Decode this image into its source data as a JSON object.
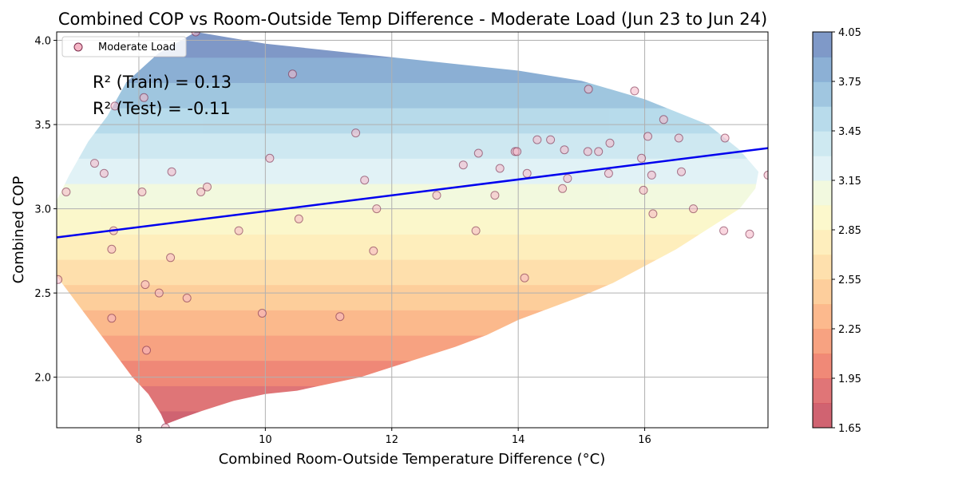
{
  "chart_data": {
    "type": "scatter",
    "title": "Combined COP vs Room-Outside Temp Difference - Moderate Load (Jun 23 to Jun 24)",
    "xlabel": "Combined Room-Outside Temperature Difference (°C)",
    "ylabel": "Combined COP",
    "xlim": [
      6.7,
      17.95
    ],
    "ylim": [
      1.7,
      4.05
    ],
    "x_ticks": [
      8,
      10,
      12,
      14,
      16
    ],
    "x_tick_labels": [
      "8",
      "10",
      "12",
      "14",
      "16"
    ],
    "y_ticks": [
      2.0,
      2.5,
      3.0,
      3.5,
      4.0
    ],
    "y_tick_labels": [
      "2.0",
      "2.5",
      "3.0",
      "3.5",
      "4.0"
    ],
    "grid": true,
    "legend": {
      "position": "top-left",
      "entries": [
        "Moderate Load"
      ]
    },
    "annotations": [
      "R² (Train) = 0.13",
      "R² (Test) = -0.11"
    ],
    "regression_line": {
      "x": [
        6.7,
        17.95
      ],
      "y": [
        2.83,
        3.36
      ],
      "color": "#0000ee"
    },
    "colorbar": {
      "levels": [
        1.65,
        1.8,
        1.95,
        2.1,
        2.25,
        2.4,
        2.55,
        2.7,
        2.85,
        3.0,
        3.15,
        3.3,
        3.45,
        3.6,
        3.75,
        3.9,
        4.05
      ],
      "tick_labels": [
        "1.65",
        "1.95",
        "2.25",
        "2.55",
        "2.85",
        "3.15",
        "3.45",
        "3.75",
        "4.05"
      ],
      "colors": [
        "#c43c4e",
        "#d85355",
        "#ec6b55",
        "#f58b62",
        "#fba870",
        "#fdc283",
        "#fed898",
        "#feeaac",
        "#fbf6bf",
        "#eff8d7",
        "#daeff4",
        "#c2e3ee",
        "#a6d2e6",
        "#88b8d8",
        "#6f9cca",
        "#5f7fba"
      ]
    },
    "points": [
      {
        "x": 6.72,
        "y": 2.58
      },
      {
        "x": 6.85,
        "y": 3.1
      },
      {
        "x": 7.3,
        "y": 3.27
      },
      {
        "x": 7.45,
        "y": 3.21
      },
      {
        "x": 7.57,
        "y": 2.76
      },
      {
        "x": 7.57,
        "y": 2.35
      },
      {
        "x": 7.62,
        "y": 3.61
      },
      {
        "x": 7.6,
        "y": 2.87
      },
      {
        "x": 8.05,
        "y": 3.1
      },
      {
        "x": 8.08,
        "y": 3.66
      },
      {
        "x": 8.1,
        "y": 2.55
      },
      {
        "x": 8.12,
        "y": 2.16
      },
      {
        "x": 8.32,
        "y": 2.5
      },
      {
        "x": 8.42,
        "y": 1.7
      },
      {
        "x": 8.5,
        "y": 2.71
      },
      {
        "x": 8.52,
        "y": 3.22
      },
      {
        "x": 8.76,
        "y": 2.47
      },
      {
        "x": 8.9,
        "y": 4.05
      },
      {
        "x": 8.98,
        "y": 3.1
      },
      {
        "x": 9.08,
        "y": 3.13
      },
      {
        "x": 9.58,
        "y": 2.87
      },
      {
        "x": 9.95,
        "y": 2.38
      },
      {
        "x": 10.07,
        "y": 3.3
      },
      {
        "x": 10.43,
        "y": 3.8
      },
      {
        "x": 10.53,
        "y": 2.94
      },
      {
        "x": 11.18,
        "y": 2.36
      },
      {
        "x": 11.43,
        "y": 3.45
      },
      {
        "x": 11.57,
        "y": 3.17
      },
      {
        "x": 11.71,
        "y": 2.75
      },
      {
        "x": 11.76,
        "y": 3.0
      },
      {
        "x": 12.71,
        "y": 3.08
      },
      {
        "x": 13.13,
        "y": 3.26
      },
      {
        "x": 13.33,
        "y": 2.87
      },
      {
        "x": 13.37,
        "y": 3.33
      },
      {
        "x": 13.63,
        "y": 3.08
      },
      {
        "x": 13.71,
        "y": 3.24
      },
      {
        "x": 13.95,
        "y": 3.34
      },
      {
        "x": 13.98,
        "y": 3.34
      },
      {
        "x": 14.1,
        "y": 2.59
      },
      {
        "x": 14.14,
        "y": 3.21
      },
      {
        "x": 14.3,
        "y": 3.41
      },
      {
        "x": 14.51,
        "y": 3.41
      },
      {
        "x": 14.7,
        "y": 3.12
      },
      {
        "x": 14.73,
        "y": 3.35
      },
      {
        "x": 14.78,
        "y": 3.18
      },
      {
        "x": 15.1,
        "y": 3.34
      },
      {
        "x": 15.11,
        "y": 3.71
      },
      {
        "x": 15.27,
        "y": 3.34
      },
      {
        "x": 15.43,
        "y": 3.21
      },
      {
        "x": 15.45,
        "y": 3.39
      },
      {
        "x": 15.84,
        "y": 3.7
      },
      {
        "x": 15.95,
        "y": 3.3
      },
      {
        "x": 15.98,
        "y": 3.11
      },
      {
        "x": 16.05,
        "y": 3.43
      },
      {
        "x": 16.11,
        "y": 3.2
      },
      {
        "x": 16.13,
        "y": 2.97
      },
      {
        "x": 16.3,
        "y": 3.53
      },
      {
        "x": 16.54,
        "y": 3.42
      },
      {
        "x": 16.58,
        "y": 3.22
      },
      {
        "x": 16.77,
        "y": 3.0
      },
      {
        "x": 17.25,
        "y": 2.87
      },
      {
        "x": 17.27,
        "y": 3.42
      },
      {
        "x": 17.66,
        "y": 2.85
      },
      {
        "x": 17.95,
        "y": 3.2
      }
    ]
  }
}
